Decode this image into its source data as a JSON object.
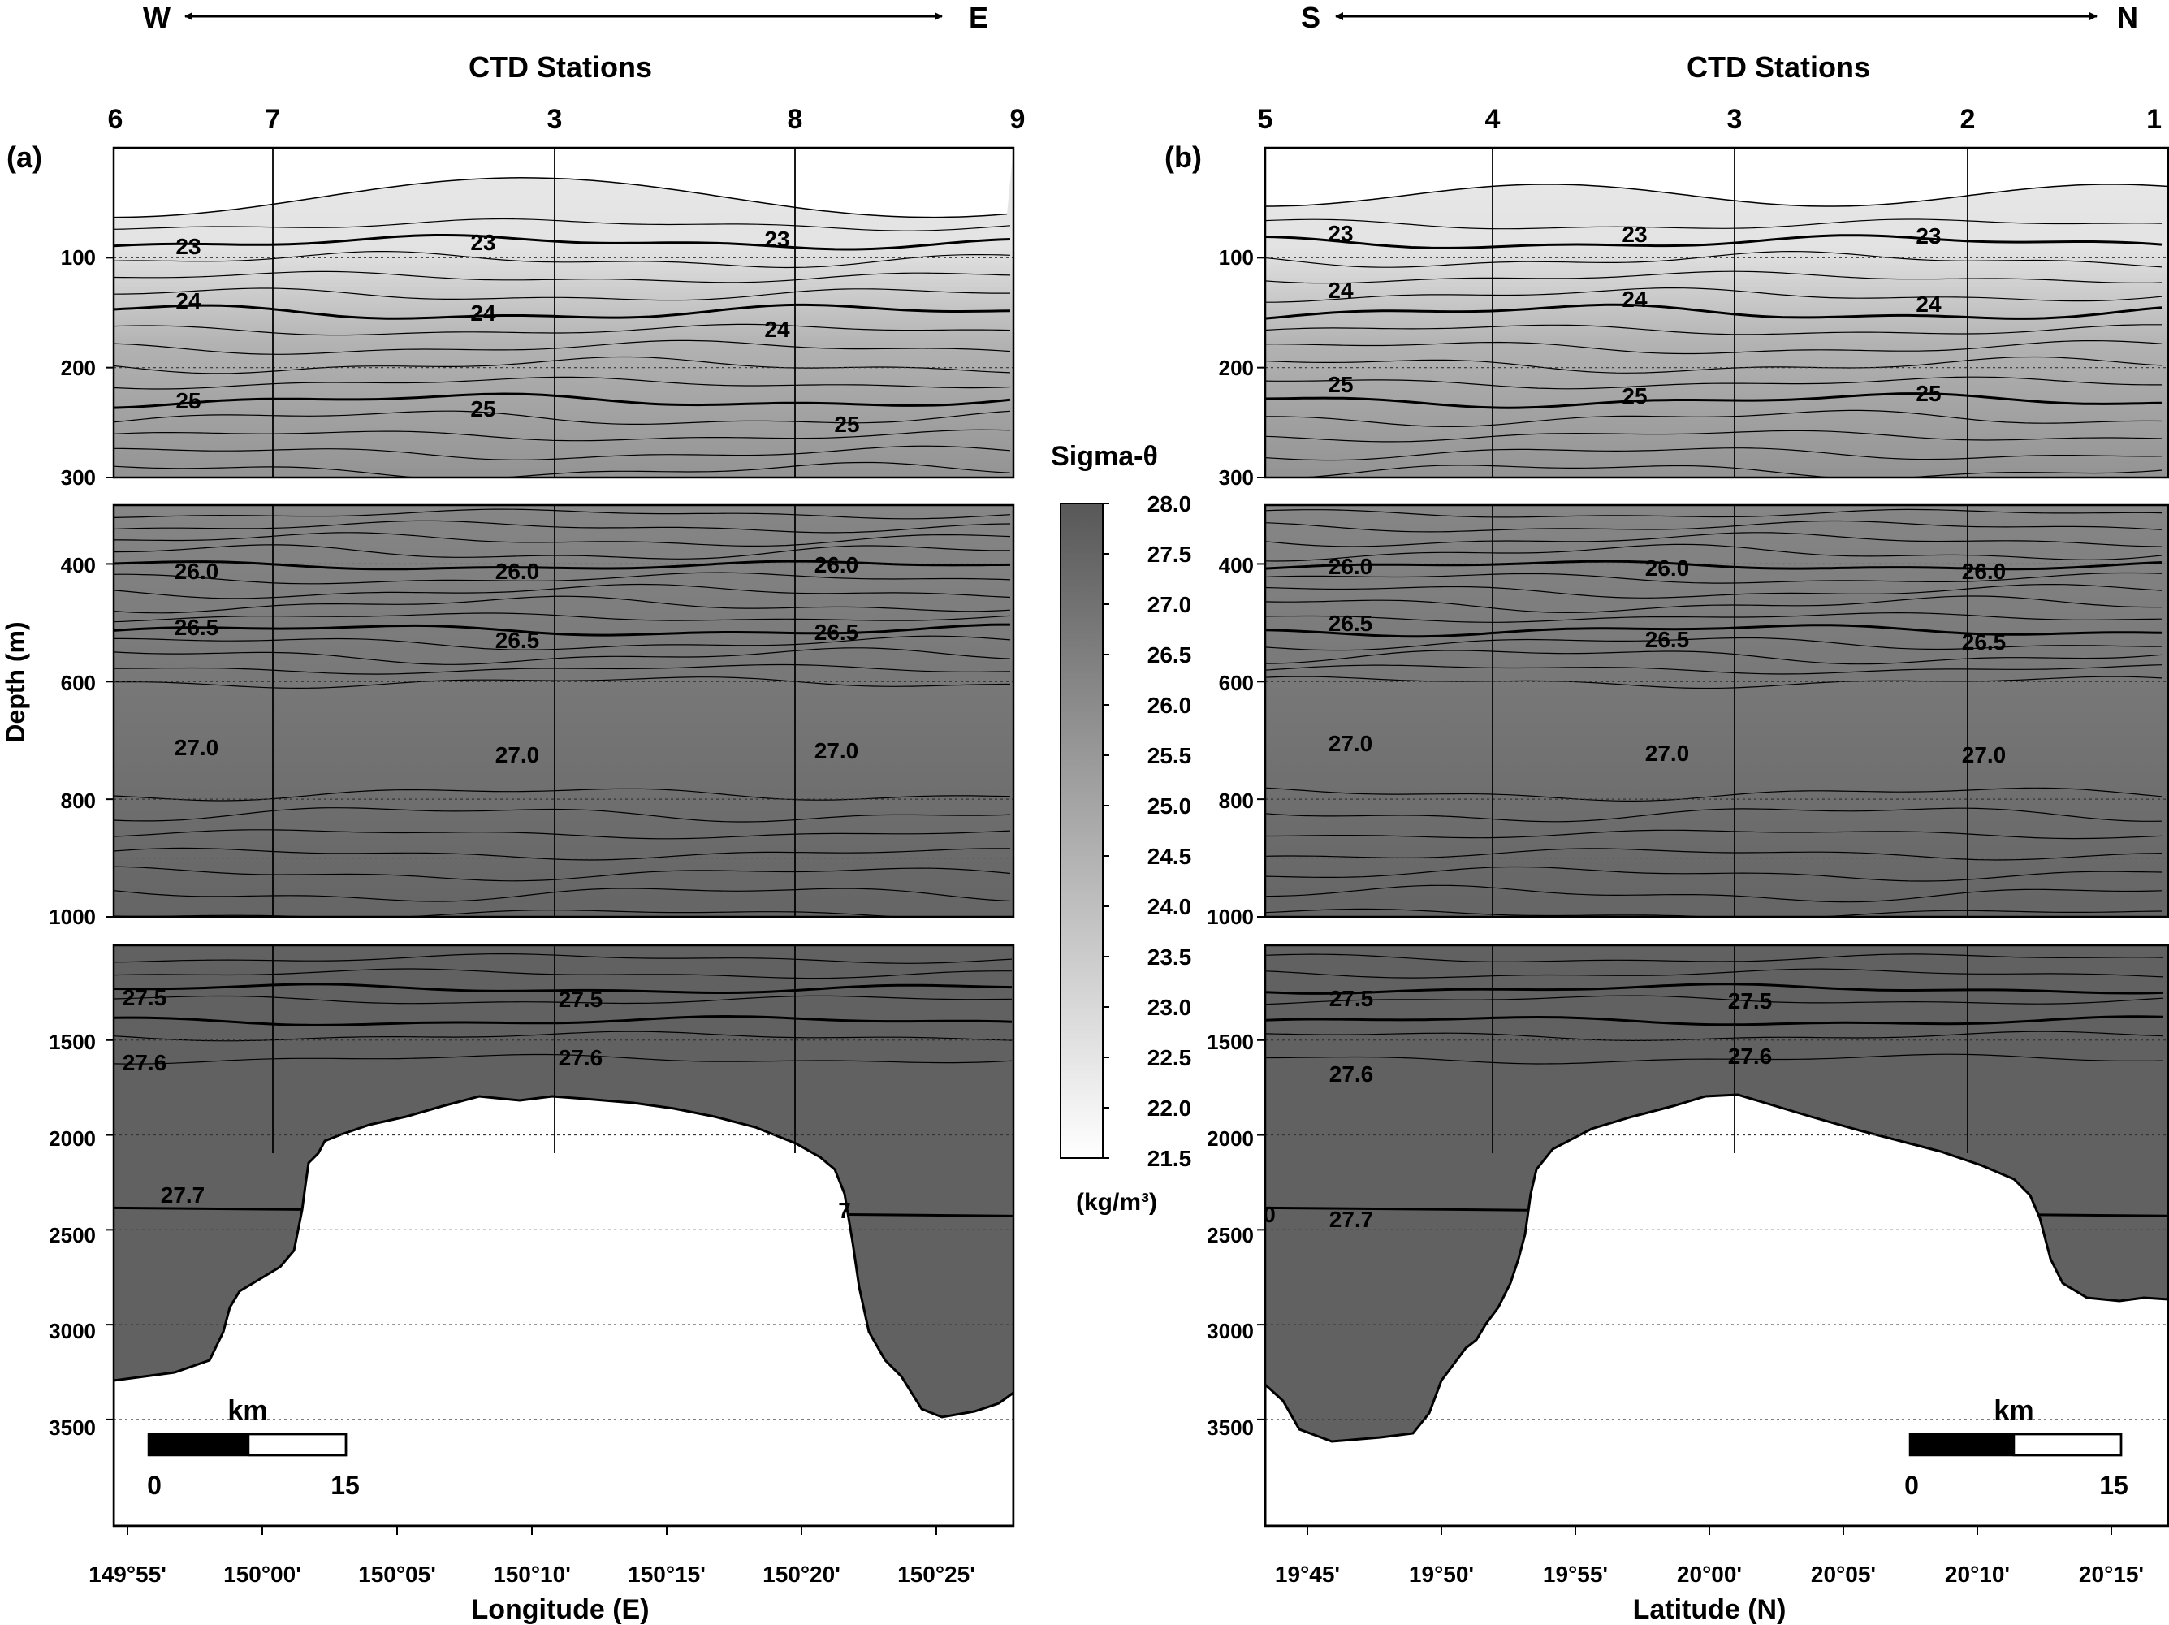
{
  "chart_data": [
    {
      "type": "contour",
      "panel_label": "(a)",
      "direction": {
        "left": "W",
        "right": "E"
      },
      "stations_title": "CTD Stations",
      "stations": [
        "6",
        "7",
        "3",
        "8",
        "9"
      ],
      "xlabel": "Longitude (E)",
      "xticks": [
        "149°55'",
        "150°00'",
        "150°05'",
        "150°10'",
        "150°15'",
        "150°20'",
        "150°25'"
      ],
      "xlim": [
        149.91,
        150.475
      ],
      "station_lon": [
        149.91,
        150.01,
        150.18,
        150.33,
        150.475
      ],
      "ylabel": "Depth (m)",
      "depth_segments": [
        {
          "ylim": [
            0,
            300
          ],
          "ticks": [
            "100",
            "200",
            "300"
          ]
        },
        {
          "ylim": [
            300,
            1000
          ],
          "ticks": [
            "400",
            "600",
            "800",
            "1000"
          ]
        },
        {
          "ylim": [
            1000,
            4000
          ],
          "ticks": [
            "1500",
            "2000",
            "2500",
            "3000",
            "3500"
          ]
        }
      ],
      "labeled_isopycnals": [
        {
          "value": "23",
          "depth_m": 85,
          "labels": [
            "23",
            "23",
            "23"
          ]
        },
        {
          "value": "24",
          "depth_m": 150,
          "labels": [
            "24",
            "24",
            "24"
          ]
        },
        {
          "value": "25",
          "depth_m": 240,
          "labels": [
            "25",
            "25",
            "25"
          ]
        },
        {
          "value": "26.0",
          "depth_m": 405,
          "labels": [
            "26.0",
            "26.0",
            "26.0"
          ]
        },
        {
          "value": "26.5",
          "depth_m": 510,
          "labels": [
            "26.5",
            "26.5",
            "26.5"
          ]
        },
        {
          "value": "27.0",
          "depth_m": 715,
          "labels": [
            "27.0",
            "27.0",
            "27.0"
          ]
        },
        {
          "value": "27.5",
          "depth_m": 1260,
          "labels": [
            "27.5",
            "27.5"
          ]
        },
        {
          "value": "27.6",
          "depth_m": 1600,
          "labels": [
            "27.6",
            "27.6"
          ]
        },
        {
          "value": "27.7",
          "depth_m": 2350,
          "labels": [
            "27.7",
            "7"
          ]
        }
      ],
      "seamount_summit_depth_m": 1780,
      "scale_bar": {
        "unit": "km",
        "min": "0",
        "max": "15"
      }
    },
    {
      "type": "contour",
      "panel_label": "(b)",
      "direction": {
        "left": "S",
        "right": "N"
      },
      "stations_title": "CTD Stations",
      "stations": [
        "5",
        "4",
        "3",
        "2",
        "1"
      ],
      "xlabel": "Latitude (N)",
      "xticks": [
        "19°45'",
        "19°50'",
        "19°55'",
        "20°00'",
        "20°05'",
        "20°10'",
        "20°15'"
      ],
      "xlim": [
        19.72,
        20.28
      ],
      "station_lat": [
        19.72,
        19.86,
        20.0,
        20.16,
        20.28
      ],
      "ylabel": "Depth (m)",
      "depth_segments": [
        {
          "ylim": [
            0,
            300
          ],
          "ticks": [
            "100",
            "200",
            "300"
          ]
        },
        {
          "ylim": [
            300,
            1000
          ],
          "ticks": [
            "400",
            "600",
            "800",
            "1000"
          ]
        },
        {
          "ylim": [
            1000,
            4000
          ],
          "ticks": [
            "1500",
            "2000",
            "2500",
            "3000",
            "3500"
          ]
        }
      ],
      "labeled_isopycnals": [
        {
          "value": "23",
          "depth_m": 80,
          "labels": [
            "23",
            "23",
            "23"
          ]
        },
        {
          "value": "24",
          "depth_m": 140,
          "labels": [
            "24",
            "24",
            "24"
          ]
        },
        {
          "value": "25",
          "depth_m": 230,
          "labels": [
            "25",
            "25",
            "25"
          ]
        },
        {
          "value": "26.0",
          "depth_m": 405,
          "labels": [
            "26.0",
            "26.0",
            "26.0"
          ]
        },
        {
          "value": "26.5",
          "depth_m": 510,
          "labels": [
            "26.5",
            "26.5",
            "26.5"
          ]
        },
        {
          "value": "27.0",
          "depth_m": 720,
          "labels": [
            "27.0",
            "27.0",
            "27.0"
          ]
        },
        {
          "value": "27.5",
          "depth_m": 1280,
          "labels": [
            "27.5",
            "27.5"
          ]
        },
        {
          "value": "27.6",
          "depth_m": 1620,
          "labels": [
            "27.6",
            "27.6"
          ]
        },
        {
          "value": "27.7",
          "depth_m": 2380,
          "labels": [
            "27.7",
            "0"
          ]
        }
      ],
      "seamount_summit_depth_m": 1780,
      "scale_bar": {
        "unit": "km",
        "min": "0",
        "max": "15"
      }
    }
  ],
  "colorbar": {
    "title": "Sigma-θ",
    "unit": "(kg/m³)",
    "range": [
      21.5,
      28.0
    ],
    "ticks": [
      "28.0",
      "27.5",
      "27.0",
      "26.5",
      "26.0",
      "25.5",
      "25.0",
      "24.5",
      "24.0",
      "23.5",
      "23.0",
      "22.5",
      "22.0",
      "21.5"
    ],
    "color_low": "#ffffff",
    "color_high": "#585858"
  }
}
